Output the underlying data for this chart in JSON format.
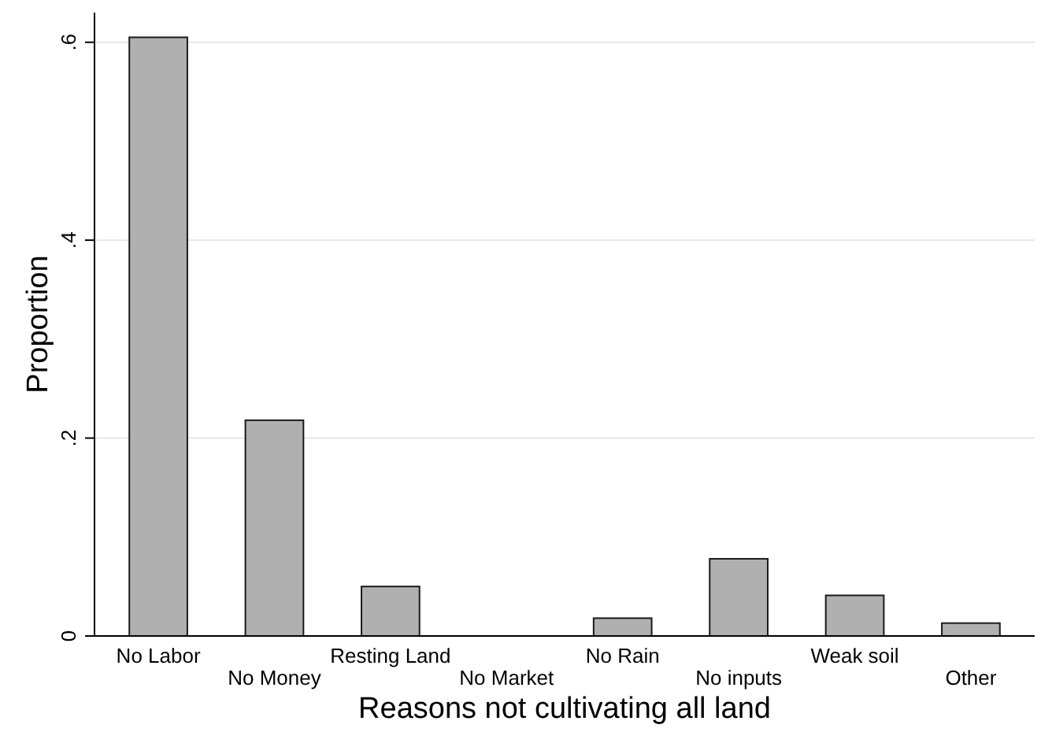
{
  "chart_data": {
    "type": "bar",
    "xlabel": "Reasons not cultivating all land",
    "ylabel": "Proportion",
    "categories": [
      "No Labor",
      "No Money",
      "Resting Land",
      "No Market",
      "No Rain",
      "No inputs",
      "Weak soil",
      "Other"
    ],
    "values": [
      0.605,
      0.218,
      0.05,
      0,
      0.018,
      0.078,
      0.041,
      0.013
    ],
    "color": "#b0b0b0",
    "ylim": [
      0,
      0.63
    ],
    "yticks": [
      {
        "value": 0,
        "label": "0"
      },
      {
        "value": 0.2,
        "label": ".2"
      },
      {
        "value": 0.4,
        "label": ".4"
      },
      {
        "value": 0.6,
        "label": ".6"
      }
    ],
    "grid": "y"
  }
}
